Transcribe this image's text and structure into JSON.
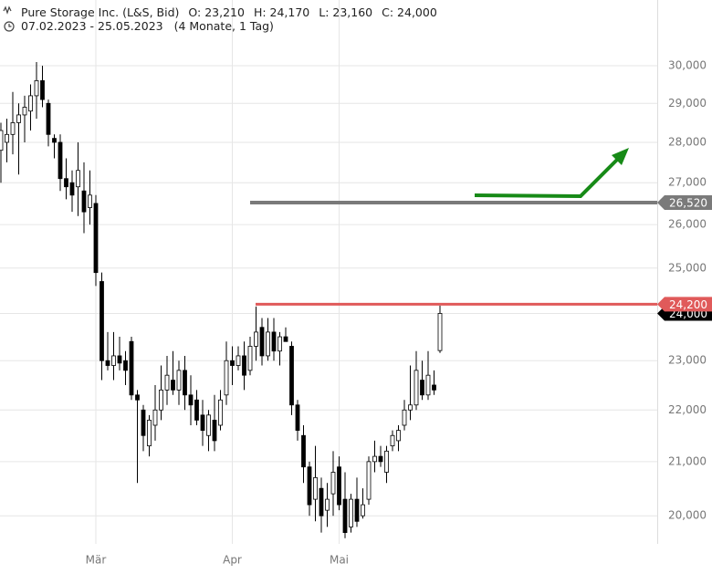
{
  "chart_data": {
    "type": "candlestick",
    "title": "Pure Storage Inc. (L&S, Bid)",
    "quote": [
      "O: 23,210",
      "H: 24,170",
      "L: 23,160",
      "C: 24,000"
    ],
    "period": "07.02.2023 - 25.05.2023",
    "period_length": "(4 Monate, 1 Tag)",
    "categories": [
      null,
      null,
      null,
      null,
      null,
      null,
      null,
      null,
      null,
      null,
      null,
      null,
      null,
      null,
      null,
      null,
      "Mär",
      null,
      null,
      null,
      null,
      null,
      null,
      null,
      null,
      null,
      null,
      null,
      null,
      null,
      null,
      null,
      null,
      null,
      null,
      null,
      null,
      null,
      null,
      "Apr",
      null,
      null,
      null,
      null,
      null,
      null,
      null,
      null,
      null,
      null,
      null,
      null,
      null,
      null,
      null,
      null,
      null,
      "Mai",
      null,
      null,
      null,
      null,
      null,
      null,
      null,
      null,
      null,
      null,
      null,
      null,
      null,
      null,
      null,
      null,
      null
    ],
    "open": [
      27800,
      28000,
      28200,
      28500,
      28700,
      28800,
      29200,
      29600,
      29000,
      28100,
      28000,
      27100,
      27000,
      26900,
      26800,
      26400,
      26500,
      24700,
      23000,
      22900,
      23100,
      23000,
      23400,
      22300,
      22000,
      21300,
      21700,
      22000,
      22400,
      22600,
      22400,
      22800,
      22300,
      22200,
      21900,
      21500,
      21800,
      21700,
      22300,
      23000,
      22900,
      23100,
      22800,
      23300,
      23700,
      23100,
      23600,
      23200,
      23500,
      23300,
      22100,
      21500,
      20900,
      20300,
      20500,
      20100,
      20400,
      20900,
      20300,
      19800,
      20300,
      20000,
      20300,
      21000,
      21100,
      20800,
      21300,
      21400,
      21700,
      22000,
      22100,
      22600,
      22300,
      22500,
      23210
    ],
    "high": [
      28500,
      28600,
      29300,
      29000,
      29200,
      29500,
      30100,
      30000,
      29100,
      28200,
      28200,
      27600,
      27300,
      28000,
      27500,
      27300,
      26700,
      24900,
      23600,
      23600,
      23500,
      23200,
      23500,
      22400,
      22100,
      21900,
      22500,
      22900,
      23100,
      23200,
      23000,
      23100,
      22700,
      22400,
      22200,
      22000,
      22300,
      22400,
      23400,
      23300,
      23300,
      23400,
      23500,
      24150,
      23900,
      23900,
      23900,
      23600,
      23700,
      23400,
      22200,
      21700,
      21000,
      21300,
      20700,
      20600,
      21200,
      21100,
      20800,
      20400,
      20700,
      20500,
      21100,
      21400,
      21300,
      21300,
      21600,
      21700,
      22200,
      22900,
      23200,
      23000,
      23200,
      22800,
      24170
    ],
    "low": [
      27000,
      27500,
      27700,
      27200,
      28000,
      28300,
      28600,
      28900,
      27900,
      27600,
      26800,
      26600,
      26300,
      26200,
      25800,
      26000,
      24600,
      22600,
      22800,
      22600,
      22800,
      22500,
      22200,
      20600,
      21200,
      21100,
      21400,
      21800,
      22100,
      22300,
      22100,
      22000,
      21700,
      21700,
      21300,
      21200,
      21200,
      21600,
      22100,
      22500,
      22800,
      22400,
      22700,
      23000,
      22900,
      23000,
      23000,
      22900,
      23400,
      21900,
      21400,
      20600,
      20000,
      19900,
      19700,
      19800,
      20000,
      20100,
      19600,
      19700,
      19800,
      19950,
      20200,
      20800,
      20900,
      20600,
      21200,
      21200,
      21600,
      21800,
      22000,
      22200,
      22200,
      22300,
      23160
    ],
    "close": [
      28300,
      28200,
      28500,
      28700,
      28900,
      29200,
      29600,
      29100,
      28200,
      28000,
      27100,
      26900,
      26700,
      27300,
      26300,
      26700,
      24900,
      23000,
      22900,
      23100,
      22950,
      22800,
      22300,
      22200,
      21500,
      21800,
      22000,
      22400,
      22700,
      22400,
      22800,
      22300,
      22100,
      21800,
      21600,
      21900,
      21400,
      22200,
      23000,
      22900,
      23100,
      22700,
      23300,
      23600,
      23100,
      23600,
      23200,
      23500,
      23400,
      22100,
      21600,
      20900,
      20200,
      20700,
      20000,
      20300,
      20800,
      20200,
      19700,
      20300,
      19900,
      20200,
      21000,
      21100,
      21000,
      21200,
      21500,
      21600,
      22000,
      22100,
      22800,
      22300,
      22700,
      22400,
      24000
    ],
    "up_color": "#ffffff",
    "down_color": "#000000",
    "log_scale": true,
    "ylim": [
      19500,
      30700
    ],
    "yticks": [
      {
        "value": 20000,
        "label": "20,000"
      },
      {
        "value": 21000,
        "label": "21,000"
      },
      {
        "value": 22000,
        "label": "22,000"
      },
      {
        "value": 23000,
        "label": "23,000"
      },
      {
        "value": 24000,
        "label": "24,000"
      },
      {
        "value": 25000,
        "label": "25,000"
      },
      {
        "value": 26000,
        "label": "26,000"
      },
      {
        "value": 27000,
        "label": "27,000"
      },
      {
        "value": 28000,
        "label": "28,000"
      },
      {
        "value": 29000,
        "label": "29,000"
      },
      {
        "value": 30000,
        "label": "30,000"
      }
    ],
    "grid": true,
    "levels": [
      {
        "value": 24000,
        "label": "24,000",
        "color": "#000000"
      },
      {
        "value": 26520,
        "label": "26,520",
        "color": "#7a7a7a"
      },
      {
        "value": 24200,
        "label": "24,200",
        "color": "#e05a5a"
      }
    ]
  }
}
